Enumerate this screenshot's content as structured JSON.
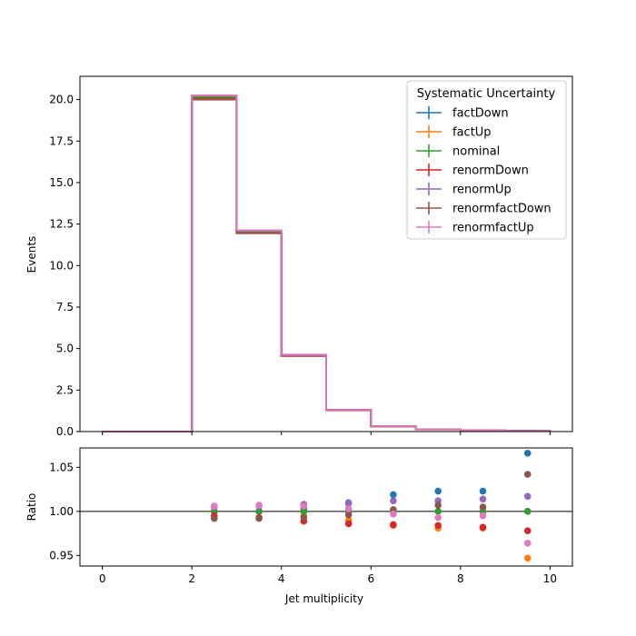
{
  "chart_data": [
    {
      "type": "line",
      "ylabel": "Events",
      "xlim": [
        -0.5,
        10.5
      ],
      "ylim": [
        0,
        21.4
      ],
      "yticks": [
        0.0,
        2.5,
        5.0,
        7.5,
        10.0,
        12.5,
        15.0,
        17.5,
        20.0
      ],
      "ytick_labels": [
        "0.0",
        "2.5",
        "5.0",
        "7.5",
        "10.0",
        "12.5",
        "15.0",
        "17.5",
        "20.0"
      ],
      "bin_edges": [
        0,
        1,
        2,
        3,
        4,
        5,
        6,
        7,
        8,
        9,
        10
      ],
      "legend": {
        "title": "Systematic Uncertainty",
        "placement": "top-right"
      },
      "series": [
        {
          "name": "factDown",
          "color": "#1f77b4",
          "values": [
            0,
            0,
            20.1,
            12.0,
            4.6,
            1.3,
            0.33,
            0.14,
            0.08,
            0.04
          ]
        },
        {
          "name": "factUp",
          "color": "#ff7f0e",
          "values": [
            0,
            0,
            20.15,
            12.05,
            4.6,
            1.29,
            0.32,
            0.13,
            0.075,
            0.035
          ]
        },
        {
          "name": "nominal",
          "color": "#2ca02c",
          "values": [
            0,
            0,
            20.15,
            12.05,
            4.6,
            1.3,
            0.32,
            0.135,
            0.078,
            0.038
          ]
        },
        {
          "name": "renormDown",
          "color": "#d62728",
          "values": [
            0,
            0,
            20.05,
            11.95,
            4.55,
            1.28,
            0.31,
            0.13,
            0.075,
            0.036
          ]
        },
        {
          "name": "renormUp",
          "color": "#9467bd",
          "values": [
            0,
            0,
            20.25,
            12.1,
            4.63,
            1.31,
            0.33,
            0.14,
            0.08,
            0.04
          ]
        },
        {
          "name": "renormfactDown",
          "color": "#8c564b",
          "values": [
            0,
            0,
            20.0,
            11.95,
            4.57,
            1.3,
            0.32,
            0.135,
            0.078,
            0.039
          ]
        },
        {
          "name": "renormfactUp",
          "color": "#e377c2",
          "values": [
            0,
            0,
            20.25,
            12.12,
            4.62,
            1.3,
            0.32,
            0.132,
            0.076,
            0.036
          ]
        }
      ]
    },
    {
      "type": "scatter",
      "xlabel": "Jet multiplicity",
      "ylabel": "Ratio",
      "xlim": [
        -0.5,
        10.5
      ],
      "ylim": [
        0.938,
        1.072
      ],
      "reference_line": 1.0,
      "xticks": [
        0,
        2,
        4,
        6,
        8,
        10
      ],
      "xtick_labels": [
        "0",
        "2",
        "4",
        "6",
        "8",
        "10"
      ],
      "yticks": [
        0.95,
        1.0,
        1.05
      ],
      "ytick_labels": [
        "0.95",
        "1.00",
        "1.05"
      ],
      "x": [
        2.5,
        3.5,
        4.5,
        5.5,
        6.5,
        7.5,
        8.5,
        9.5
      ],
      "series": [
        {
          "name": "factDown",
          "color": "#1f77b4",
          "values": [
            1.0,
            1.0,
            1.003,
            1.009,
            1.019,
            1.023,
            1.023,
            1.066
          ]
        },
        {
          "name": "factUp",
          "color": "#ff7f0e",
          "values": [
            1.0,
            1.0,
            0.995,
            0.99,
            0.984,
            0.981,
            0.981,
            0.947
          ]
        },
        {
          "name": "nominal",
          "color": "#2ca02c",
          "values": [
            1.0,
            1.0,
            1.0,
            1.0,
            1.0,
            1.0,
            1.0,
            1.0
          ]
        },
        {
          "name": "renormDown",
          "color": "#d62728",
          "values": [
            0.995,
            0.993,
            0.989,
            0.986,
            0.985,
            0.984,
            0.982,
            0.978
          ]
        },
        {
          "name": "renormUp",
          "color": "#9467bd",
          "values": [
            1.005,
            1.006,
            1.008,
            1.01,
            1.012,
            1.012,
            1.014,
            1.017
          ]
        },
        {
          "name": "renormfactDown",
          "color": "#8c564b",
          "values": [
            0.992,
            0.992,
            0.993,
            0.996,
            1.002,
            1.007,
            1.005,
            1.042
          ]
        },
        {
          "name": "renormfactUp",
          "color": "#e377c2",
          "values": [
            1.006,
            1.007,
            1.006,
            1.003,
            0.997,
            0.993,
            0.995,
            0.964
          ]
        }
      ]
    }
  ]
}
